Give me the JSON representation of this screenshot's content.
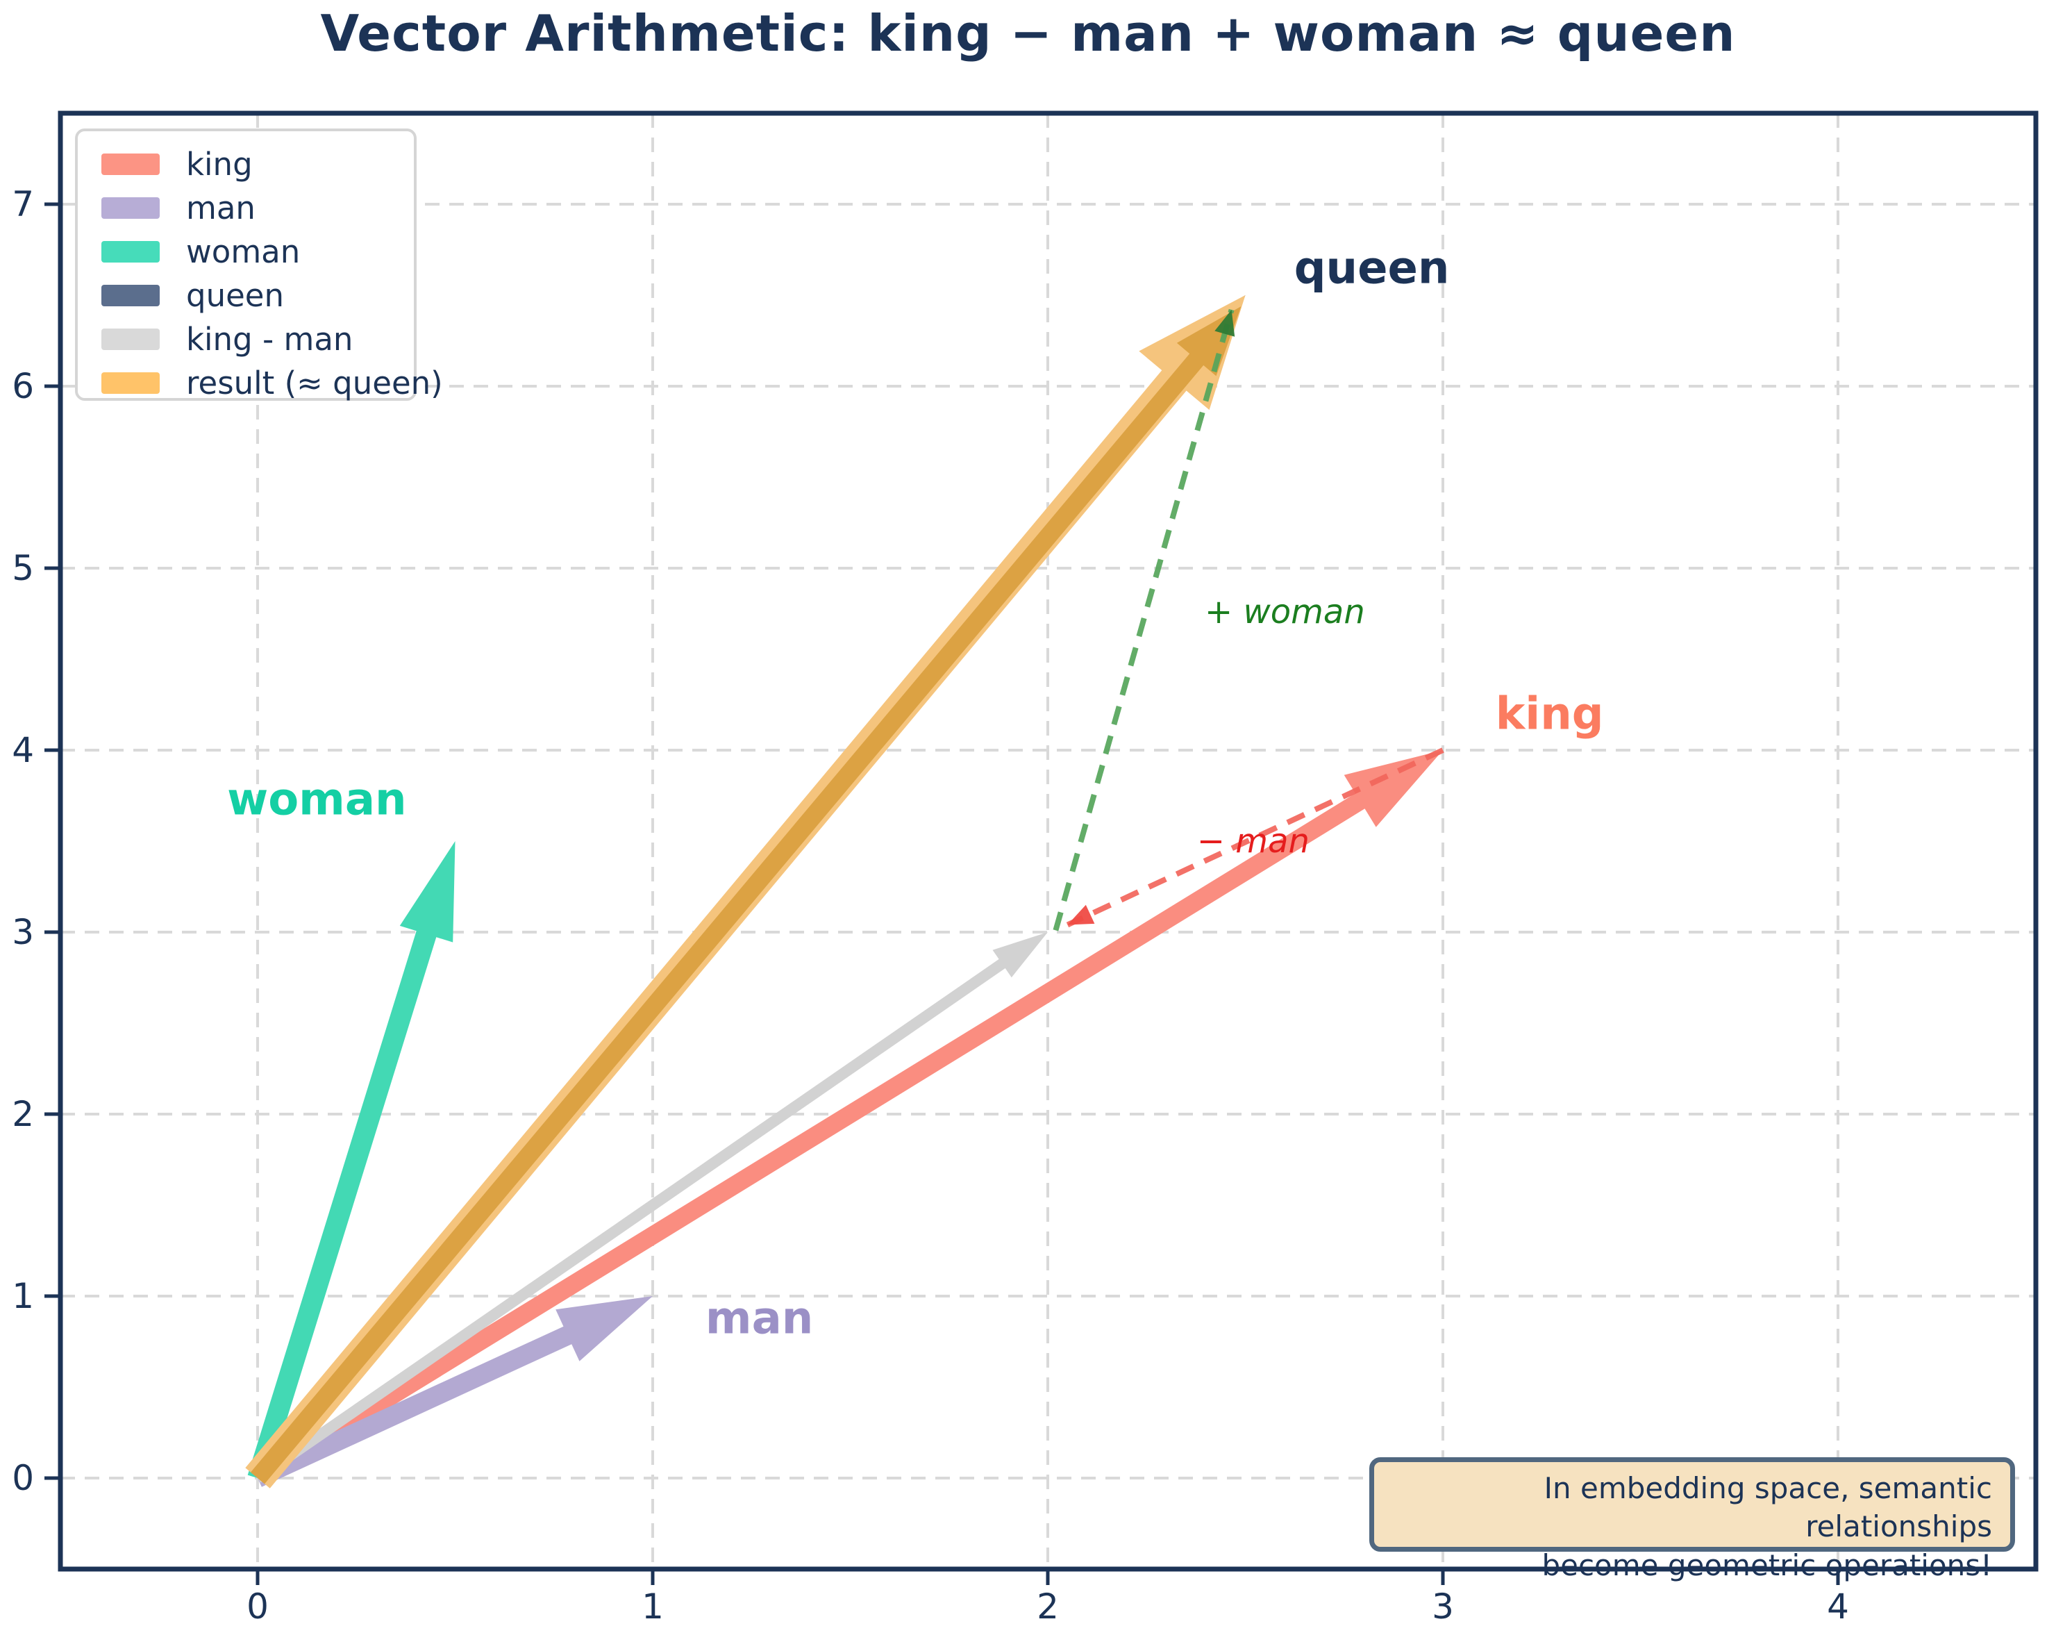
{
  "title": {
    "text": "Vector Arithmetic: king − man + woman ≈ queen",
    "color": "#1c3356"
  },
  "colors": {
    "navy": "#1c3356",
    "grid": "#d9d9d9",
    "background": "#ffffff",
    "legend_border": "#d5d5d5"
  },
  "legend": {
    "items": [
      {
        "id": "king",
        "label": "king",
        "color": "#fc9484"
      },
      {
        "id": "man",
        "label": "man",
        "color": "#b7add6"
      },
      {
        "id": "woman",
        "label": "woman",
        "color": "#46dcba"
      },
      {
        "id": "queen",
        "label": "queen",
        "color": "#5b6e8d"
      },
      {
        "id": "king-man",
        "label": "king - man",
        "color": "#d9d9d9"
      },
      {
        "id": "result",
        "label": "result (≈ queen)",
        "color": "#ffc369"
      }
    ]
  },
  "info_box": {
    "lines": [
      "In embedding space, semantic relationships",
      "become geometric operations!"
    ],
    "bg": "#f6e2c0",
    "border": "#50677f",
    "text_color": "#1c3356"
  },
  "axes": {
    "x_ticks": [
      "0",
      "1",
      "2",
      "3",
      "4"
    ],
    "y_ticks": [
      "0",
      "1",
      "2",
      "3",
      "4",
      "5",
      "6",
      "7"
    ],
    "xlim": [
      -0.5,
      4.5
    ],
    "ylim": [
      -0.5,
      7.5
    ],
    "tick_label_color": "#1c3356",
    "spine_color": "#1c3356"
  },
  "chart_data": {
    "type": "vector",
    "title": "Vector Arithmetic: king − man + woman ≈ queen",
    "xlabel": "",
    "ylabel": "",
    "xlim": [
      -0.5,
      4.5
    ],
    "ylim": [
      -0.5,
      7.5
    ],
    "grid": "dashed",
    "legend_position": "upper left",
    "vectors": [
      {
        "name": "king",
        "from": [
          0,
          0
        ],
        "to": [
          3,
          4
        ],
        "color": "#fa8d80",
        "label": {
          "text": "king",
          "at": [
            3.27,
            4.2
          ],
          "color": "#fb7c60"
        }
      },
      {
        "name": "man",
        "from": [
          0,
          0
        ],
        "to": [
          1,
          1
        ],
        "color": "#b3a9d2",
        "label": {
          "text": "man",
          "at": [
            1.27,
            0.88
          ],
          "color": "#9b90c6"
        }
      },
      {
        "name": "woman",
        "from": [
          0,
          0
        ],
        "to": [
          0.5,
          3.5
        ],
        "color": "#43d9b4",
        "label": {
          "text": "woman",
          "at": [
            0.15,
            3.73
          ],
          "color": "#14cfa4"
        }
      },
      {
        "name": "queen",
        "from": [
          0,
          0
        ],
        "to": [
          2.5,
          6.5
        ],
        "color": "#5b6e8d",
        "note": "drawn beneath the result arrow",
        "label": {
          "text": "queen",
          "at": [
            2.82,
            6.65
          ],
          "color": "#1c3356"
        }
      },
      {
        "name": "king-man",
        "from": [
          0,
          0
        ],
        "to": [
          2,
          3
        ],
        "color": "#d2d2d2"
      },
      {
        "name": "result",
        "from": [
          0,
          0
        ],
        "to": [
          2.5,
          6.5
        ],
        "color": "#dca243",
        "halo_color": "#f5c47d"
      }
    ],
    "operations": [
      {
        "name": "minus-man",
        "from": [
          3,
          4
        ],
        "to": [
          2.05,
          3.04
        ],
        "style": "dashed",
        "color": "#f2665c",
        "head_color": "#ef4b44",
        "label": {
          "text": "− man",
          "at": [
            2.52,
            3.5
          ],
          "color": "#e51d1d"
        }
      },
      {
        "name": "plus-woman",
        "from": [
          2.02,
          3.01
        ],
        "to": [
          2.465,
          6.42
        ],
        "style": "dashed",
        "color": "#55a55b",
        "head_color": "#2f7b35",
        "label": {
          "text": "+ woman",
          "at": [
            2.6,
            4.76
          ],
          "color": "#1b7e1f"
        }
      }
    ]
  }
}
